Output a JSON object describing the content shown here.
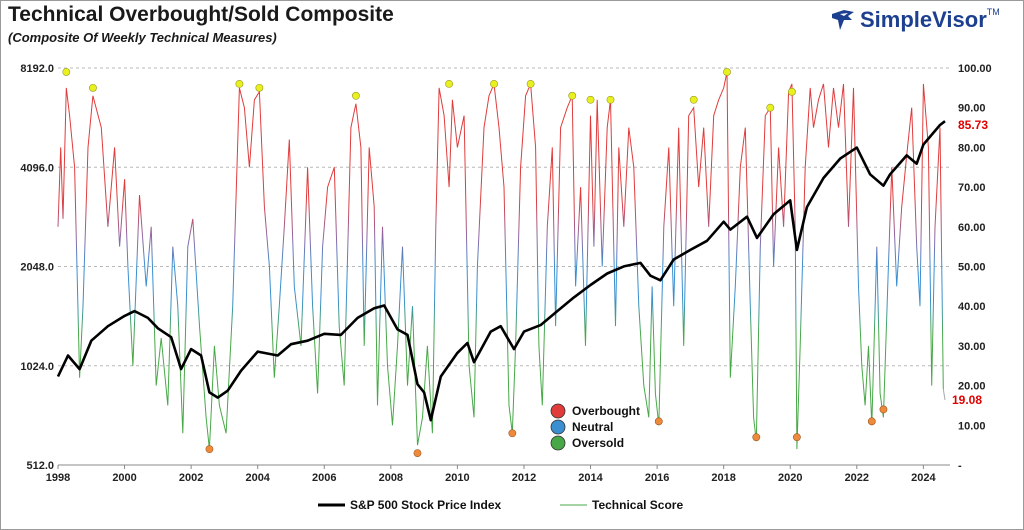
{
  "header": {
    "title": "Technical Overbought/Sold Composite",
    "subtitle": "(Composite Of Weekly Technical Measures)",
    "brand": "SimpleVisor",
    "brand_tm": "TM"
  },
  "colors": {
    "price_line": "#000000",
    "overbought": "#e03c3c",
    "neutral": "#3a8fd0",
    "oversold": "#48a848",
    "peak_marker": "#e8f020",
    "trough_marker": "#ee8a3c",
    "value_label": "#e00000"
  },
  "chart_data": {
    "type": "line",
    "x_range": [
      1998,
      2024.8
    ],
    "x_ticks": [
      "1998",
      "2000",
      "2002",
      "2004",
      "2006",
      "2008",
      "2010",
      "2012",
      "2014",
      "2016",
      "2018",
      "2020",
      "2022",
      "2024"
    ],
    "y_left": {
      "scale": "log2",
      "range": [
        512,
        8192
      ],
      "ticks": [
        "512.0",
        "1024.0",
        "2048.0",
        "4096.0",
        "8192.0"
      ]
    },
    "y_right": {
      "range": [
        0,
        100
      ],
      "ticks": [
        "100.00",
        "90.00",
        "80.00",
        "70.00",
        "60.00",
        "50.00",
        "40.00",
        "30.00",
        "20.00",
        "10.00",
        "-"
      ]
    },
    "series": [
      {
        "name": "S&P 500 Stock Price Index",
        "axis": "left",
        "points": [
          [
            1998.0,
            950
          ],
          [
            1998.3,
            1100
          ],
          [
            1998.65,
            1000
          ],
          [
            1999.0,
            1220
          ],
          [
            1999.5,
            1350
          ],
          [
            2000.0,
            1450
          ],
          [
            2000.3,
            1500
          ],
          [
            2000.7,
            1430
          ],
          [
            2001.0,
            1330
          ],
          [
            2001.4,
            1250
          ],
          [
            2001.7,
            1000
          ],
          [
            2002.0,
            1150
          ],
          [
            2002.3,
            1100
          ],
          [
            2002.55,
            850
          ],
          [
            2002.8,
            820
          ],
          [
            2003.1,
            860
          ],
          [
            2003.5,
            990
          ],
          [
            2004.0,
            1130
          ],
          [
            2004.6,
            1100
          ],
          [
            2005.0,
            1190
          ],
          [
            2005.5,
            1220
          ],
          [
            2006.0,
            1280
          ],
          [
            2006.5,
            1270
          ],
          [
            2007.0,
            1430
          ],
          [
            2007.5,
            1530
          ],
          [
            2007.8,
            1560
          ],
          [
            2008.2,
            1320
          ],
          [
            2008.5,
            1270
          ],
          [
            2008.8,
            900
          ],
          [
            2009.0,
            850
          ],
          [
            2009.2,
            700
          ],
          [
            2009.5,
            950
          ],
          [
            2010.0,
            1120
          ],
          [
            2010.3,
            1200
          ],
          [
            2010.5,
            1050
          ],
          [
            2011.0,
            1300
          ],
          [
            2011.3,
            1350
          ],
          [
            2011.7,
            1150
          ],
          [
            2012.0,
            1300
          ],
          [
            2012.5,
            1360
          ],
          [
            2013.0,
            1500
          ],
          [
            2013.5,
            1650
          ],
          [
            2014.0,
            1800
          ],
          [
            2014.5,
            1950
          ],
          [
            2015.0,
            2050
          ],
          [
            2015.5,
            2100
          ],
          [
            2015.8,
            1920
          ],
          [
            2016.1,
            1860
          ],
          [
            2016.5,
            2150
          ],
          [
            2017.0,
            2300
          ],
          [
            2017.5,
            2450
          ],
          [
            2018.0,
            2800
          ],
          [
            2018.2,
            2650
          ],
          [
            2018.7,
            2900
          ],
          [
            2019.0,
            2500
          ],
          [
            2019.5,
            2950
          ],
          [
            2020.0,
            3250
          ],
          [
            2020.2,
            2300
          ],
          [
            2020.5,
            3100
          ],
          [
            2021.0,
            3800
          ],
          [
            2021.5,
            4350
          ],
          [
            2022.0,
            4700
          ],
          [
            2022.4,
            3900
          ],
          [
            2022.8,
            3600
          ],
          [
            2023.0,
            3900
          ],
          [
            2023.5,
            4450
          ],
          [
            2023.8,
            4200
          ],
          [
            2024.0,
            4800
          ],
          [
            2024.5,
            5500
          ],
          [
            2024.65,
            5650
          ]
        ]
      },
      {
        "name": "Technical Score",
        "axis": "right",
        "points": [
          [
            1998.0,
            60
          ],
          [
            1998.08,
            80
          ],
          [
            1998.15,
            62
          ],
          [
            1998.25,
            95
          ],
          [
            1998.35,
            88
          ],
          [
            1998.5,
            75
          ],
          [
            1998.65,
            22
          ],
          [
            1998.75,
            40
          ],
          [
            1998.9,
            80
          ],
          [
            1999.05,
            93
          ],
          [
            1999.3,
            85
          ],
          [
            1999.5,
            60
          ],
          [
            1999.7,
            80
          ],
          [
            1999.85,
            55
          ],
          [
            2000.0,
            72
          ],
          [
            2000.1,
            50
          ],
          [
            2000.25,
            25
          ],
          [
            2000.45,
            68
          ],
          [
            2000.65,
            45
          ],
          [
            2000.8,
            60
          ],
          [
            2000.95,
            20
          ],
          [
            2001.1,
            32
          ],
          [
            2001.3,
            15
          ],
          [
            2001.45,
            55
          ],
          [
            2001.6,
            40
          ],
          [
            2001.75,
            8
          ],
          [
            2001.9,
            55
          ],
          [
            2002.05,
            62
          ],
          [
            2002.25,
            35
          ],
          [
            2002.45,
            12
          ],
          [
            2002.55,
            4
          ],
          [
            2002.7,
            30
          ],
          [
            2002.85,
            15
          ],
          [
            2003.05,
            8
          ],
          [
            2003.25,
            40
          ],
          [
            2003.45,
            95
          ],
          [
            2003.6,
            90
          ],
          [
            2003.75,
            75
          ],
          [
            2003.9,
            92
          ],
          [
            2004.05,
            94
          ],
          [
            2004.2,
            65
          ],
          [
            2004.35,
            50
          ],
          [
            2004.5,
            22
          ],
          [
            2004.65,
            40
          ],
          [
            2004.8,
            60
          ],
          [
            2004.95,
            82
          ],
          [
            2005.1,
            45
          ],
          [
            2005.3,
            30
          ],
          [
            2005.5,
            75
          ],
          [
            2005.65,
            40
          ],
          [
            2005.8,
            18
          ],
          [
            2005.95,
            55
          ],
          [
            2006.1,
            70
          ],
          [
            2006.3,
            75
          ],
          [
            2006.45,
            35
          ],
          [
            2006.6,
            20
          ],
          [
            2006.8,
            85
          ],
          [
            2006.95,
            91
          ],
          [
            2007.1,
            80
          ],
          [
            2007.2,
            30
          ],
          [
            2007.35,
            80
          ],
          [
            2007.5,
            65
          ],
          [
            2007.6,
            15
          ],
          [
            2007.75,
            60
          ],
          [
            2007.9,
            25
          ],
          [
            2008.05,
            10
          ],
          [
            2008.2,
            30
          ],
          [
            2008.35,
            55
          ],
          [
            2008.5,
            20
          ],
          [
            2008.65,
            40
          ],
          [
            2008.8,
            5
          ],
          [
            2008.95,
            12
          ],
          [
            2009.1,
            30
          ],
          [
            2009.25,
            8
          ],
          [
            2009.35,
            60
          ],
          [
            2009.45,
            95
          ],
          [
            2009.6,
            88
          ],
          [
            2009.75,
            70
          ],
          [
            2009.85,
            92
          ],
          [
            2010.0,
            80
          ],
          [
            2010.2,
            88
          ],
          [
            2010.35,
            25
          ],
          [
            2010.5,
            12
          ],
          [
            2010.6,
            50
          ],
          [
            2010.8,
            85
          ],
          [
            2010.95,
            93
          ],
          [
            2011.1,
            96
          ],
          [
            2011.25,
            85
          ],
          [
            2011.4,
            70
          ],
          [
            2011.55,
            15
          ],
          [
            2011.65,
            8
          ],
          [
            2011.75,
            30
          ],
          [
            2011.9,
            75
          ],
          [
            2012.05,
            93
          ],
          [
            2012.2,
            96
          ],
          [
            2012.35,
            80
          ],
          [
            2012.45,
            30
          ],
          [
            2012.55,
            15
          ],
          [
            2012.7,
            60
          ],
          [
            2012.85,
            80
          ],
          [
            2012.95,
            35
          ],
          [
            2013.1,
            85
          ],
          [
            2013.3,
            90
          ],
          [
            2013.45,
            93
          ],
          [
            2013.55,
            45
          ],
          [
            2013.7,
            70
          ],
          [
            2013.85,
            30
          ],
          [
            2014.0,
            88
          ],
          [
            2014.1,
            55
          ],
          [
            2014.2,
            92
          ],
          [
            2014.35,
            50
          ],
          [
            2014.5,
            85
          ],
          [
            2014.6,
            92
          ],
          [
            2014.75,
            35
          ],
          [
            2014.85,
            80
          ],
          [
            2015.0,
            60
          ],
          [
            2015.15,
            85
          ],
          [
            2015.3,
            75
          ],
          [
            2015.45,
            40
          ],
          [
            2015.6,
            20
          ],
          [
            2015.75,
            12
          ],
          [
            2015.85,
            45
          ],
          [
            2015.95,
            18
          ],
          [
            2016.05,
            10
          ],
          [
            2016.2,
            60
          ],
          [
            2016.35,
            80
          ],
          [
            2016.5,
            40
          ],
          [
            2016.65,
            85
          ],
          [
            2016.8,
            30
          ],
          [
            2016.95,
            88
          ],
          [
            2017.1,
            90
          ],
          [
            2017.25,
            70
          ],
          [
            2017.4,
            85
          ],
          [
            2017.55,
            60
          ],
          [
            2017.7,
            88
          ],
          [
            2017.85,
            92
          ],
          [
            2018.0,
            95
          ],
          [
            2018.1,
            99
          ],
          [
            2018.2,
            22
          ],
          [
            2018.35,
            45
          ],
          [
            2018.5,
            75
          ],
          [
            2018.65,
            85
          ],
          [
            2018.8,
            40
          ],
          [
            2018.9,
            12
          ],
          [
            2018.98,
            6
          ],
          [
            2019.1,
            55
          ],
          [
            2019.25,
            88
          ],
          [
            2019.4,
            90
          ],
          [
            2019.5,
            50
          ],
          [
            2019.65,
            80
          ],
          [
            2019.8,
            60
          ],
          [
            2019.95,
            94
          ],
          [
            2020.05,
            96
          ],
          [
            2020.15,
            60
          ],
          [
            2020.2,
            4
          ],
          [
            2020.3,
            30
          ],
          [
            2020.45,
            75
          ],
          [
            2020.6,
            95
          ],
          [
            2020.7,
            85
          ],
          [
            2020.85,
            92
          ],
          [
            2021.0,
            96
          ],
          [
            2021.15,
            80
          ],
          [
            2021.3,
            95
          ],
          [
            2021.45,
            85
          ],
          [
            2021.6,
            96
          ],
          [
            2021.75,
            60
          ],
          [
            2021.9,
            95
          ],
          [
            2022.05,
            45
          ],
          [
            2022.15,
            25
          ],
          [
            2022.25,
            15
          ],
          [
            2022.35,
            30
          ],
          [
            2022.45,
            10
          ],
          [
            2022.6,
            55
          ],
          [
            2022.7,
            18
          ],
          [
            2022.8,
            12
          ],
          [
            2022.95,
            50
          ],
          [
            2023.05,
            75
          ],
          [
            2023.2,
            45
          ],
          [
            2023.35,
            65
          ],
          [
            2023.5,
            78
          ],
          [
            2023.65,
            90
          ],
          [
            2023.8,
            55
          ],
          [
            2023.9,
            40
          ],
          [
            2024.0,
            96
          ],
          [
            2024.15,
            80
          ],
          [
            2024.25,
            20
          ],
          [
            2024.35,
            60
          ],
          [
            2024.5,
            85
          ],
          [
            2024.6,
            19.08
          ]
        ]
      }
    ],
    "peaks": [
      [
        1998.25,
        99
      ],
      [
        1999.05,
        95
      ],
      [
        2003.45,
        96
      ],
      [
        2004.05,
        95
      ],
      [
        2006.95,
        93
      ],
      [
        2009.75,
        96
      ],
      [
        2011.1,
        96
      ],
      [
        2012.2,
        96
      ],
      [
        2013.45,
        93
      ],
      [
        2014.0,
        92
      ],
      [
        2014.6,
        92
      ],
      [
        2017.1,
        92
      ],
      [
        2018.1,
        99
      ],
      [
        2019.4,
        90
      ],
      [
        2020.05,
        94
      ]
    ],
    "troughs": [
      [
        2002.55,
        4
      ],
      [
        2008.8,
        3
      ],
      [
        2011.65,
        8
      ],
      [
        2016.05,
        11
      ],
      [
        2018.98,
        7
      ],
      [
        2020.2,
        7
      ],
      [
        2022.45,
        11
      ],
      [
        2022.8,
        14
      ]
    ],
    "latest_values": {
      "price_score": "85.73",
      "technical_score": "19.08"
    },
    "zone_legend": [
      "Overbought",
      "Neutral",
      "Oversold"
    ],
    "bottom_legend": [
      "S&P 500 Stock Price Index",
      "Technical Score"
    ],
    "grid": "horizontal dashed",
    "legend_position": "bottom-center"
  }
}
